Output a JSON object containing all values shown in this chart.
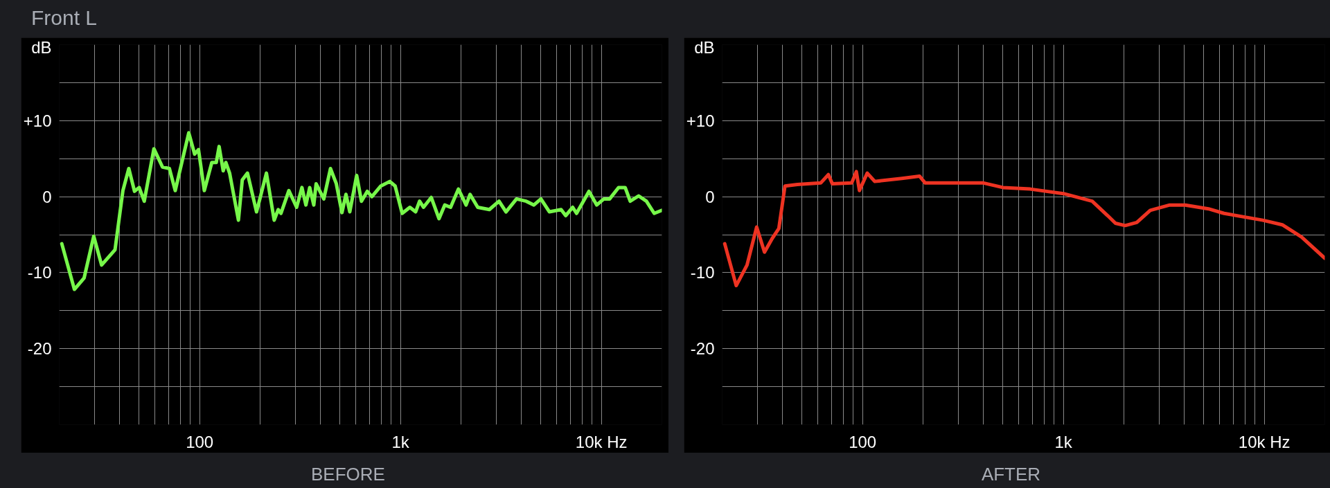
{
  "chart_data": [
    {
      "type": "line",
      "title": "Front L",
      "xlabel": "BEFORE",
      "ylabel": "dB",
      "log": "x",
      "grid": true,
      "xlim": [
        20,
        20000
      ],
      "ylim": [
        -30,
        20
      ],
      "xticks": [
        {
          "value": 30,
          "label": null
        },
        {
          "value": 40,
          "label": null
        },
        {
          "value": 50,
          "label": null
        },
        {
          "value": 60,
          "label": null
        },
        {
          "value": 70,
          "label": null
        },
        {
          "value": 80,
          "label": null
        },
        {
          "value": 90,
          "label": null
        },
        100,
        {
          "value": 200,
          "label": null
        },
        {
          "value": 300,
          "label": null
        },
        {
          "value": 400,
          "label": null
        },
        {
          "value": 500,
          "label": null
        },
        {
          "value": 600,
          "label": null
        },
        {
          "value": 700,
          "label": null
        },
        {
          "value": 800,
          "label": null
        },
        {
          "value": 900,
          "label": null
        },
        {
          "value": 1000,
          "label": "1k"
        },
        {
          "value": 2000,
          "label": null
        },
        {
          "value": 3000,
          "label": null
        },
        {
          "value": 4000,
          "label": null
        },
        {
          "value": 5000,
          "label": null
        },
        {
          "value": 6000,
          "label": null
        },
        {
          "value": 7000,
          "label": null
        },
        {
          "value": 8000,
          "label": null
        },
        {
          "value": 9000,
          "label": null
        },
        {
          "value": 10000,
          "label": "10k Hz"
        }
      ],
      "yticks": [
        {
          "value": -25,
          "label": null
        },
        -20,
        {
          "value": -15,
          "label": null
        },
        -10,
        {
          "value": -5,
          "label": null
        },
        0,
        {
          "value": 5,
          "label": null
        },
        {
          "value": 10,
          "label": "+10"
        },
        {
          "value": 15,
          "label": null
        }
      ],
      "series": [
        {
          "color": "#77f74a",
          "x": [
            20.6,
            23.8,
            26.6,
            29.7,
            32.5,
            37.9,
            41.5,
            44.4,
            47.4,
            50,
            53,
            59.2,
            65.3,
            70.7,
            75.6,
            88.3,
            94.4,
            98.7,
            105.5,
            115,
            121,
            125,
            131,
            135,
            141,
            156,
            163,
            173,
            192,
            215,
            235,
            246,
            254,
            278,
            304,
            323,
            338,
            353,
            370,
            380,
            415,
            448,
            479,
            511,
            535,
            559,
            605,
            639,
            683,
            720,
            798,
            884,
            940,
            1019,
            1113,
            1189,
            1244,
            1301,
            1422,
            1554,
            1660,
            1775,
            1941,
            2120,
            2218,
            2423,
            2768,
            3093,
            3350,
            3778,
            4220,
            4612,
            5000,
            5512,
            6300,
            6640,
            7196,
            7520,
            8670,
            9480,
            10280,
            10990,
            12170,
            13130,
            13910,
            15320,
            16750,
            18320,
            20000
          ],
          "values": [
            -6.2,
            -12.2,
            -10.7,
            -5.2,
            -9.0,
            -7.0,
            0.8,
            3.7,
            0.7,
            1.2,
            -0.6,
            6.3,
            3.9,
            3.7,
            0.8,
            8.4,
            5.6,
            6.2,
            0.8,
            4.5,
            4.5,
            6.6,
            3.4,
            4.5,
            3.1,
            -3.1,
            2.2,
            3.1,
            -2.0,
            3.1,
            -3.1,
            -1.7,
            -2.2,
            0.8,
            -1.4,
            1.2,
            -1.1,
            1.2,
            -1.1,
            1.7,
            -0.3,
            3.7,
            1.7,
            -2.1,
            0.3,
            -2.0,
            2.8,
            -0.6,
            0.7,
            0,
            1.4,
            2.0,
            1.4,
            -2.2,
            -1.4,
            -2.0,
            -0.6,
            -1.4,
            -0.1,
            -2.9,
            -1.1,
            -1.4,
            1.0,
            -1.1,
            0.3,
            -1.4,
            -1.7,
            -0.6,
            -2.0,
            -0.3,
            -0.6,
            -1.1,
            -0.3,
            -2.0,
            -1.7,
            -2.5,
            -1.4,
            -2.2,
            0.7,
            -1.1,
            -0.3,
            -0.3,
            1.2,
            1.2,
            -0.6,
            0.1,
            -0.6,
            -2.2,
            -1.8
          ]
        }
      ]
    },
    {
      "type": "line",
      "xlabel": "AFTER",
      "ylabel": "dB",
      "log": "x",
      "grid": true,
      "xlim": [
        20,
        20000
      ],
      "ylim": [
        -30,
        20
      ],
      "xticks": [
        {
          "value": 30,
          "label": null
        },
        {
          "value": 40,
          "label": null
        },
        {
          "value": 50,
          "label": null
        },
        {
          "value": 60,
          "label": null
        },
        {
          "value": 70,
          "label": null
        },
        {
          "value": 80,
          "label": null
        },
        {
          "value": 90,
          "label": null
        },
        100,
        {
          "value": 200,
          "label": null
        },
        {
          "value": 300,
          "label": null
        },
        {
          "value": 400,
          "label": null
        },
        {
          "value": 500,
          "label": null
        },
        {
          "value": 600,
          "label": null
        },
        {
          "value": 700,
          "label": null
        },
        {
          "value": 800,
          "label": null
        },
        {
          "value": 900,
          "label": null
        },
        {
          "value": 1000,
          "label": "1k"
        },
        {
          "value": 2000,
          "label": null
        },
        {
          "value": 3000,
          "label": null
        },
        {
          "value": 4000,
          "label": null
        },
        {
          "value": 5000,
          "label": null
        },
        {
          "value": 6000,
          "label": null
        },
        {
          "value": 7000,
          "label": null
        },
        {
          "value": 8000,
          "label": null
        },
        {
          "value": 9000,
          "label": null
        },
        {
          "value": 10000,
          "label": "10k Hz"
        }
      ],
      "yticks": [
        {
          "value": -25,
          "label": null
        },
        -20,
        {
          "value": -15,
          "label": null
        },
        -10,
        {
          "value": -5,
          "label": null
        },
        0,
        {
          "value": 5,
          "label": null
        },
        {
          "value": 10,
          "label": "+10"
        },
        {
          "value": 15,
          "label": null
        }
      ],
      "series": [
        {
          "color": "#ee3322",
          "x": [
            20.6,
            23.5,
            26.6,
            29.7,
            32.5,
            35.5,
            38.3,
            41.1,
            47.4,
            61.9,
            67.6,
            70.7,
            88.3,
            93.1,
            96.5,
            105.5,
            115,
            157,
            192,
            205,
            306,
            400,
            500,
            683,
            1000,
            1390,
            1660,
            1815,
            2028,
            2317,
            2705,
            3381,
            4040,
            5270,
            6300,
            9820,
            12280,
            15320,
            20000
          ],
          "values": [
            -6.2,
            -11.7,
            -9.0,
            -4.0,
            -7.3,
            -5.5,
            -4.2,
            1.4,
            1.6,
            1.8,
            2.9,
            1.7,
            1.8,
            3.3,
            0.8,
            3.1,
            2.0,
            2.4,
            2.7,
            1.8,
            1.8,
            1.8,
            1.2,
            1.0,
            0.4,
            -0.6,
            -2.5,
            -3.5,
            -3.8,
            -3.4,
            -1.8,
            -1.1,
            -1.1,
            -1.6,
            -2.2,
            -3.1,
            -3.7,
            -5.3,
            -8.1
          ]
        }
      ]
    }
  ]
}
